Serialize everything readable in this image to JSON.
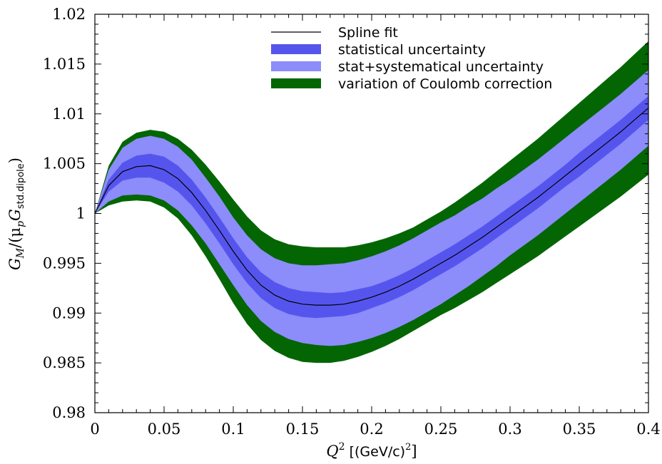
{
  "chart_data": {
    "type": "area",
    "title": "",
    "xlabel": {
      "main": "Q",
      "sup": "2",
      "unit": " [(GeV/c)",
      "unit_sup": "2",
      "unit_end": "]"
    },
    "ylabel": {
      "main": "G",
      "sub1": "M",
      "mid": "/(μ",
      "sub2": "p",
      "mid2": "G",
      "sub3": "std.dipole",
      "end": ")"
    },
    "xlim": [
      0,
      0.4
    ],
    "ylim": [
      0.98,
      1.02
    ],
    "xticks": [
      0,
      0.05,
      0.1,
      0.15,
      0.2,
      0.25,
      0.3,
      0.35,
      0.4
    ],
    "xtick_labels": [
      "0",
      "0.05",
      "0.1",
      "0.15",
      "0.2",
      "0.25",
      "0.3",
      "0.35",
      "0.4"
    ],
    "yticks": [
      0.98,
      0.985,
      0.99,
      0.995,
      1.0,
      1.005,
      1.01,
      1.015,
      1.02
    ],
    "ytick_labels": [
      "0.98",
      "0.985",
      "0.99",
      "0.995",
      "1",
      "1.005",
      "1.01",
      "1.015",
      "1.02"
    ],
    "grid": false,
    "legend_position": "top-center",
    "x": [
      0,
      0.01,
      0.02,
      0.03,
      0.04,
      0.05,
      0.06,
      0.07,
      0.08,
      0.09,
      0.1,
      0.11,
      0.12,
      0.13,
      0.14,
      0.15,
      0.16,
      0.17,
      0.18,
      0.19,
      0.2,
      0.21,
      0.22,
      0.23,
      0.24,
      0.25,
      0.26,
      0.27,
      0.28,
      0.29,
      0.3,
      0.31,
      0.32,
      0.33,
      0.34,
      0.35,
      0.36,
      0.37,
      0.38,
      0.39,
      0.4
    ],
    "series": [
      {
        "name": "Spline fit",
        "kind": "line",
        "color": "#000000",
        "values": [
          1.0,
          1.0028,
          1.0042,
          1.0047,
          1.0048,
          1.0044,
          1.0035,
          1.0021,
          1.0003,
          0.9983,
          0.9962,
          0.9943,
          0.9928,
          0.9918,
          0.9912,
          0.9909,
          0.9908,
          0.9908,
          0.9909,
          0.9912,
          0.9916,
          0.9921,
          0.9927,
          0.9934,
          0.9942,
          0.995,
          0.9958,
          0.9967,
          0.9976,
          0.9986,
          0.9996,
          1.0006,
          1.0016,
          1.0027,
          1.0038,
          1.0049,
          1.006,
          1.0071,
          1.0082,
          1.0094,
          1.0106
        ]
      },
      {
        "name": "statistical uncertainty",
        "kind": "band",
        "color": "#5555ee",
        "halfwidth": [
          0.0,
          0.0006,
          0.0009,
          0.0011,
          0.0012,
          0.0013,
          0.0013,
          0.0013,
          0.0013,
          0.0013,
          0.0013,
          0.0013,
          0.0013,
          0.0013,
          0.0013,
          0.0013,
          0.0013,
          0.0012,
          0.0012,
          0.0012,
          0.0011,
          0.0011,
          0.0011,
          0.0011,
          0.0011,
          0.0011,
          0.0011,
          0.0011,
          0.0011,
          0.0011,
          0.0011,
          0.0011,
          0.0011,
          0.0011,
          0.0011,
          0.0012,
          0.0012,
          0.0012,
          0.0012,
          0.0012,
          0.0012
        ]
      },
      {
        "name": "stat+systematical uncertainty",
        "kind": "band",
        "color": "#8c8cfa",
        "halfwidth": [
          0.0,
          0.0016,
          0.0024,
          0.0028,
          0.003,
          0.0031,
          0.0032,
          0.0033,
          0.0033,
          0.0034,
          0.0034,
          0.0035,
          0.0036,
          0.0037,
          0.0038,
          0.0039,
          0.004,
          0.0041,
          0.0041,
          0.0041,
          0.0041,
          0.0041,
          0.0041,
          0.0041,
          0.0041,
          0.0041,
          0.004,
          0.004,
          0.0039,
          0.0039,
          0.0038,
          0.0038,
          0.0038,
          0.0038,
          0.0038,
          0.0038,
          0.0038,
          0.0038,
          0.0038,
          0.0038,
          0.0038
        ]
      },
      {
        "name": "variation of Coulomb correction",
        "kind": "band",
        "color": "#036603",
        "halfwidth": [
          0.0,
          0.002,
          0.003,
          0.0034,
          0.0036,
          0.0038,
          0.004,
          0.0043,
          0.0046,
          0.0049,
          0.0052,
          0.0054,
          0.0055,
          0.0056,
          0.0057,
          0.0058,
          0.0058,
          0.0058,
          0.0057,
          0.0056,
          0.0055,
          0.0054,
          0.0053,
          0.0052,
          0.0052,
          0.0052,
          0.0053,
          0.0054,
          0.0055,
          0.0056,
          0.0057,
          0.0058,
          0.0059,
          0.006,
          0.0061,
          0.0062,
          0.0063,
          0.0064,
          0.0065,
          0.0066,
          0.0067
        ]
      }
    ]
  }
}
